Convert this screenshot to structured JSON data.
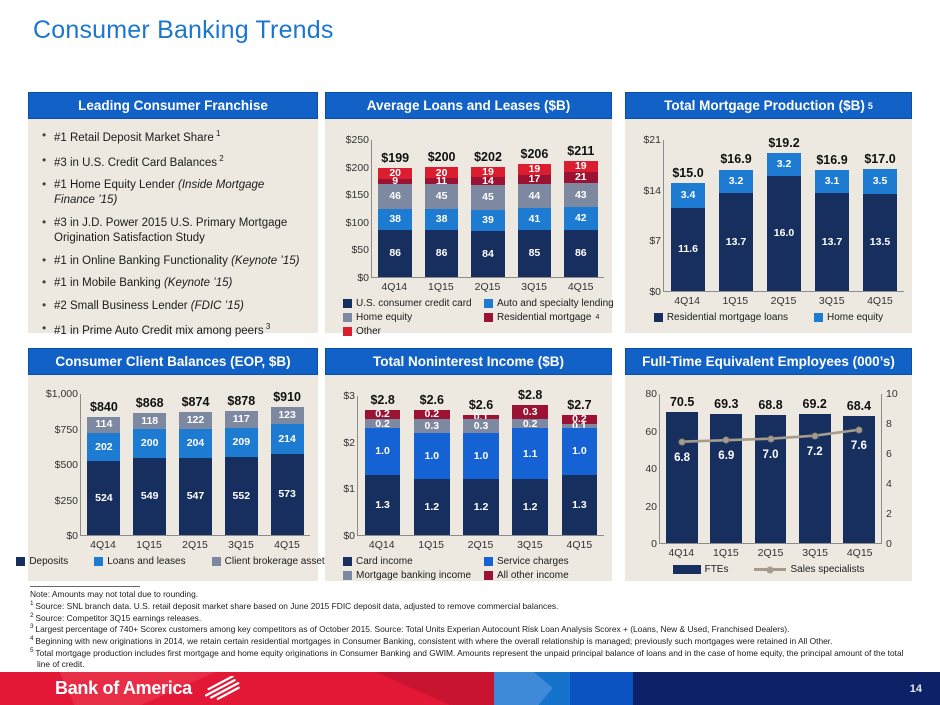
{
  "page": {
    "title": "Consumer Banking Trends",
    "page_number": "14",
    "logo_text": "Bank of America"
  },
  "franchise_panel": {
    "title": "Leading Consumer Franchise",
    "bullets": [
      {
        "text": "#1 Retail Deposit Market Share",
        "sup": "1"
      },
      {
        "text": "#3 in U.S. Credit Card Balances",
        "sup": "2"
      },
      {
        "text": "#1 Home Equity Lender",
        "italic": "(Inside Mortgage Finance ’15)"
      },
      {
        "text": "#3 in J.D. Power 2015 U.S. Primary Mortgage Origination Satisfaction Study"
      },
      {
        "text": "#1 in Online Banking Functionality",
        "italic": "(Keynote ’15)"
      },
      {
        "text": "#1 in Mobile Banking",
        "italic": "(Keynote ’15)"
      },
      {
        "text": "#2 Small Business Lender",
        "italic": "(FDIC ’15)"
      },
      {
        "text": "#1 in Prime Auto Credit mix among peers",
        "sup": "3"
      }
    ]
  },
  "colors": {
    "navy": "#172F5F",
    "light_blue": "#1E7BD2",
    "royal_blue": "#1562D4",
    "gray": "#7D89A0",
    "crimson": "#9B1232",
    "red": "#DB1E2F",
    "tan_line": "#A59C8D",
    "header_blue": "#1161C6",
    "panel_beige": "#EDE9E0",
    "title_blue": "#1B76D0",
    "footer_red": "#E31837",
    "footer_navy": "#0D2166"
  },
  "chart_data": [
    {
      "type": "bar",
      "stacked": true,
      "title": "Average Loans and Leases ($B)",
      "title_sup": "",
      "categories": [
        "4Q14",
        "1Q15",
        "2Q15",
        "3Q15",
        "4Q15"
      ],
      "series": [
        {
          "name": "U.S. consumer credit card",
          "color": "#172F5F",
          "values": [
            "86",
            "86",
            "84",
            "85",
            "86"
          ]
        },
        {
          "name": "Auto and specialty lending",
          "color": "#1E7BD2",
          "values": [
            "38",
            "38",
            "39",
            "41",
            "42"
          ]
        },
        {
          "name": "Home equity",
          "color": "#7D89A0",
          "values": [
            "46",
            "45",
            "45",
            "44",
            "43"
          ]
        },
        {
          "name": "Residential mortgage",
          "sup": "4",
          "color": "#9B1232",
          "values": [
            "9",
            "11",
            "14",
            "17",
            "21"
          ]
        },
        {
          "name": "Other",
          "color": "#DB1E2F",
          "values": [
            "20",
            "20",
            "19",
            "19",
            "19"
          ]
        }
      ],
      "totals": [
        "$199",
        "$200",
        "$202",
        "$206",
        "$211"
      ],
      "ylim": [
        0,
        250
      ],
      "yticks": [
        {
          "label": "$0",
          "value": 0
        },
        {
          "label": "$50",
          "value": 50
        },
        {
          "label": "$100",
          "value": 100
        },
        {
          "label": "$150",
          "value": 150
        },
        {
          "label": "$200",
          "value": 200
        },
        {
          "label": "$250",
          "value": 250
        }
      ],
      "legend": {
        "layout": "grid",
        "items": [
          {
            "label": "U.S. consumer credit card",
            "color": "#172F5F",
            "swatch": "sq"
          },
          {
            "label": "Auto and specialty lending",
            "color": "#1E7BD2",
            "swatch": "sq"
          },
          {
            "label": "Home equity",
            "color": "#7D89A0",
            "swatch": "sq"
          },
          {
            "label": "Residential mortgage",
            "sup": "4",
            "color": "#9B1232",
            "swatch": "sq"
          },
          {
            "label": "Other",
            "color": "#DB1E2F",
            "swatch": "sq"
          }
        ]
      }
    },
    {
      "type": "bar",
      "stacked": true,
      "title": "Total Mortgage Production ($B)",
      "title_sup": "5",
      "categories": [
        "4Q14",
        "1Q15",
        "2Q15",
        "3Q15",
        "4Q15"
      ],
      "series": [
        {
          "name": "Residential mortgage loans",
          "color": "#172F5F",
          "values": [
            "11.6",
            "13.7",
            "16.0",
            "13.7",
            "13.5"
          ]
        },
        {
          "name": "Home equity",
          "color": "#1E7BD2",
          "values": [
            "3.4",
            "3.2",
            "3.2",
            "3.1",
            "3.5"
          ]
        }
      ],
      "totals": [
        "$15.0",
        "$16.9",
        "$19.2",
        "$16.9",
        "$17.0"
      ],
      "ylim": [
        0,
        21
      ],
      "yticks": [
        {
          "label": "$0",
          "value": 0
        },
        {
          "label": "$7",
          "value": 7
        },
        {
          "label": "$14",
          "value": 14
        },
        {
          "label": "$21",
          "value": 21
        }
      ],
      "legend": {
        "layout": "row",
        "items": [
          {
            "label": "Residential mortgage loans",
            "color": "#172F5F",
            "swatch": "sq"
          },
          {
            "label": "Home equity",
            "color": "#1E7BD2",
            "swatch": "sq"
          }
        ]
      }
    },
    {
      "type": "bar",
      "stacked": true,
      "title": "Consumer Client Balances (EOP, $B)",
      "title_sup": "",
      "categories": [
        "4Q14",
        "1Q15",
        "2Q15",
        "3Q15",
        "4Q15"
      ],
      "series": [
        {
          "name": "Deposits",
          "color": "#172F5F",
          "values": [
            "524",
            "549",
            "547",
            "552",
            "573"
          ]
        },
        {
          "name": "Loans and leases",
          "color": "#1E7BD2",
          "values": [
            "202",
            "200",
            "204",
            "209",
            "214"
          ]
        },
        {
          "name": "Client brokerage assets",
          "color": "#7D89A0",
          "values": [
            "114",
            "118",
            "122",
            "117",
            "123"
          ]
        }
      ],
      "totals": [
        "$840",
        "$868",
        "$874",
        "$878",
        "$910"
      ],
      "ylim": [
        0,
        1000
      ],
      "yticks": [
        {
          "label": "$0",
          "value": 0
        },
        {
          "label": "$250",
          "value": 250
        },
        {
          "label": "$500",
          "value": 500
        },
        {
          "label": "$750",
          "value": 750
        },
        {
          "label": "$1,000",
          "value": 1000
        }
      ],
      "legend": {
        "layout": "row",
        "items": [
          {
            "label": "Deposits",
            "color": "#172F5F",
            "swatch": "sq"
          },
          {
            "label": "Loans and leases",
            "color": "#1E7BD2",
            "swatch": "sq"
          },
          {
            "label": "Client brokerage assets",
            "color": "#7D89A0",
            "swatch": "sq"
          }
        ]
      }
    },
    {
      "type": "bar",
      "stacked": true,
      "title": "Total Noninterest Income ($B)",
      "title_sup": "",
      "categories": [
        "4Q14",
        "1Q15",
        "2Q15",
        "3Q15",
        "4Q15"
      ],
      "series": [
        {
          "name": "Card income",
          "color": "#172F5F",
          "values": [
            "1.3",
            "1.2",
            "1.2",
            "1.2",
            "1.3"
          ]
        },
        {
          "name": "Service charges",
          "color": "#1562D4",
          "values": [
            "1.0",
            "1.0",
            "1.0",
            "1.1",
            "1.0"
          ]
        },
        {
          "name": "Mortgage banking income",
          "color": "#7D89A0",
          "values": [
            "0.2",
            "0.3",
            "0.3",
            "0.2",
            "0.1"
          ]
        },
        {
          "name": "All other income",
          "color": "#9B1232",
          "values": [
            "0.2",
            "0.2",
            "0.1",
            "0.3",
            "0.2"
          ]
        }
      ],
      "totals": [
        "$2.8",
        "$2.6",
        "$2.6",
        "$2.8",
        "$2.7"
      ],
      "ylim": [
        0,
        3
      ],
      "yticks": [
        {
          "label": "$0",
          "value": 0
        },
        {
          "label": "$1",
          "value": 1
        },
        {
          "label": "$2",
          "value": 2
        },
        {
          "label": "$3",
          "value": 3
        }
      ],
      "legend": {
        "layout": "grid",
        "items": [
          {
            "label": "Card income",
            "color": "#172F5F",
            "swatch": "sq"
          },
          {
            "label": "Service charges",
            "color": "#1562D4",
            "swatch": "sq"
          },
          {
            "label": "Mortgage banking income",
            "color": "#7D89A0",
            "swatch": "sq"
          },
          {
            "label": "All other income",
            "color": "#9B1232",
            "swatch": "sq"
          }
        ]
      }
    },
    {
      "type": "bar-line",
      "title": "Full-Time Equivalent Employees (000’s)",
      "title_sup": "",
      "categories": [
        "4Q14",
        "1Q15",
        "2Q15",
        "3Q15",
        "4Q15"
      ],
      "series": [
        {
          "name": "FTEs",
          "color": "#172F5F",
          "values": [
            "70.5",
            "69.3",
            "68.8",
            "69.2",
            "68.4"
          ],
          "labels_above": true
        }
      ],
      "totals": [
        "70.5",
        "69.3",
        "68.8",
        "69.2",
        "68.4"
      ],
      "line": {
        "name": "Sales specialists",
        "color": "#A59C8D",
        "values": [
          "6.8",
          "6.9",
          "7.0",
          "7.2",
          "7.6"
        ]
      },
      "ylim": [
        0,
        80
      ],
      "yticks": [
        {
          "label": "0",
          "value": 0
        },
        {
          "label": "20",
          "value": 20
        },
        {
          "label": "40",
          "value": 40
        },
        {
          "label": "60",
          "value": 60
        },
        {
          "label": "80",
          "value": 80
        }
      ],
      "right_ylim": [
        0,
        10
      ],
      "right_yticks": [
        {
          "label": "0",
          "value": 0
        },
        {
          "label": "2",
          "value": 2
        },
        {
          "label": "4",
          "value": 4
        },
        {
          "label": "6",
          "value": 6
        },
        {
          "label": "8",
          "value": 8
        },
        {
          "label": "10",
          "value": 10
        }
      ],
      "legend": {
        "layout": "row",
        "items": [
          {
            "label": "FTEs",
            "color": "#172F5F",
            "swatch": "bar"
          },
          {
            "label": "Sales specialists",
            "color": "#A59C8D",
            "swatch": "line"
          }
        ]
      }
    }
  ],
  "footnotes": [
    {
      "sup": "",
      "text": "Note: Amounts may not total due to rounding."
    },
    {
      "sup": "1",
      "text": "Source: SNL branch data. U.S. retail deposit market share based on June 2015 FDIC deposit data, adjusted to remove commercial balances."
    },
    {
      "sup": "2",
      "text": "Source: Competitor 3Q15 earnings releases."
    },
    {
      "sup": "3",
      "text": "Largest percentage of 740+ Scorex customers among key competitors as of October 2015. Source: Total Units Experian Autocount Risk Loan Analysis Scorex + (Loans, New & Used, Franchised Dealers)."
    },
    {
      "sup": "4",
      "text": "Beginning with new originations in 2014, we retain certain residential mortgages in Consumer Banking, consistent with where the overall relationship is managed; previously such mortgages were retained in All Other."
    },
    {
      "sup": "5",
      "text": "Total mortgage production includes first mortgage and home equity originations in Consumer Banking and GWIM. Amounts represent the unpaid principal balance of loans and in the case of home equity, the principal amount of the total line of credit."
    }
  ]
}
